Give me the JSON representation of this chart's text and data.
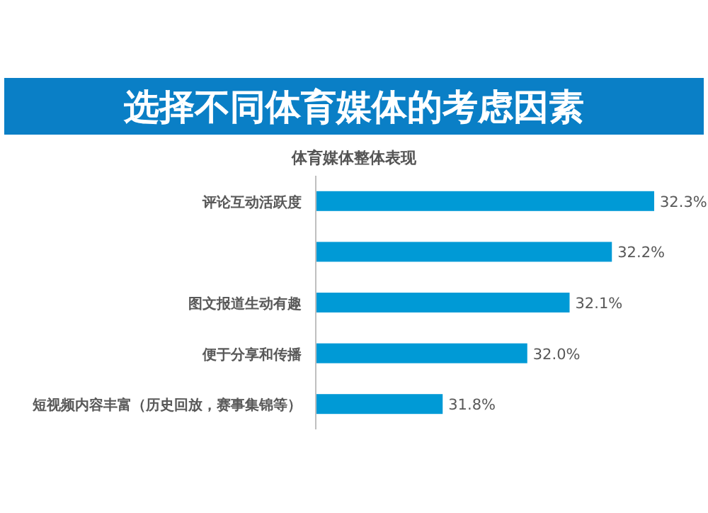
{
  "chart_data": {
    "type": "bar",
    "orientation": "horizontal",
    "title": "选择不同体育媒体的考虑因素",
    "subtitle": "体育媒体整体表现",
    "categories": [
      "评论互动活跃度",
      null,
      "图文报道生动有趣",
      "便于分享和传播",
      "短视频内容丰富（历史回放，赛事集锦等）"
    ],
    "values": [
      32.3,
      32.2,
      32.1,
      32.0,
      31.8
    ],
    "value_labels": [
      "32.3%",
      "32.2%",
      "32.1%",
      "32.0%",
      "31.8%"
    ],
    "color": "#009ad6",
    "xlim": [
      31.5,
      32.3
    ],
    "tick_labels": "y"
  }
}
